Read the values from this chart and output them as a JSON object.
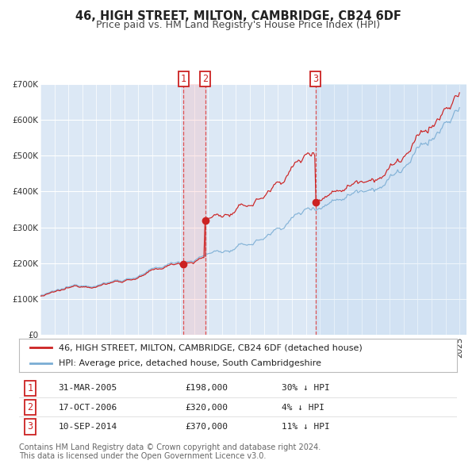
{
  "title": "46, HIGH STREET, MILTON, CAMBRIDGE, CB24 6DF",
  "subtitle": "Price paid vs. HM Land Registry's House Price Index (HPI)",
  "ylim": [
    0,
    700000
  ],
  "yticks": [
    0,
    100000,
    200000,
    300000,
    400000,
    500000,
    600000,
    700000
  ],
  "ytick_labels": [
    "£0",
    "£100K",
    "£200K",
    "£300K",
    "£400K",
    "£500K",
    "£600K",
    "£700K"
  ],
  "hpi_color": "#7aadd4",
  "price_color": "#cc2222",
  "background_color": "#ffffff",
  "plot_bg_color": "#dce8f5",
  "grid_color": "#ffffff",
  "vline_color": "#dd4444",
  "transactions": [
    {
      "label": "1",
      "date": "31-MAR-2005",
      "date_num": 2005.25,
      "price": 198000,
      "pct": "30%",
      "direction": "↓"
    },
    {
      "label": "2",
      "date": "17-OCT-2006",
      "date_num": 2006.79,
      "price": 320000,
      "pct": "4%",
      "direction": "↓"
    },
    {
      "label": "3",
      "date": "10-SEP-2014",
      "date_num": 2014.69,
      "price": 370000,
      "pct": "11%",
      "direction": "↓"
    }
  ],
  "legend_entries": [
    "46, HIGH STREET, MILTON, CAMBRIDGE, CB24 6DF (detached house)",
    "HPI: Average price, detached house, South Cambridgeshire"
  ],
  "footnote1": "Contains HM Land Registry data © Crown copyright and database right 2024.",
  "footnote2": "This data is licensed under the Open Government Licence v3.0.",
  "title_fontsize": 10.5,
  "subtitle_fontsize": 9,
  "tick_fontsize": 7.5,
  "legend_fontsize": 8,
  "table_fontsize": 8,
  "footnote_fontsize": 7
}
